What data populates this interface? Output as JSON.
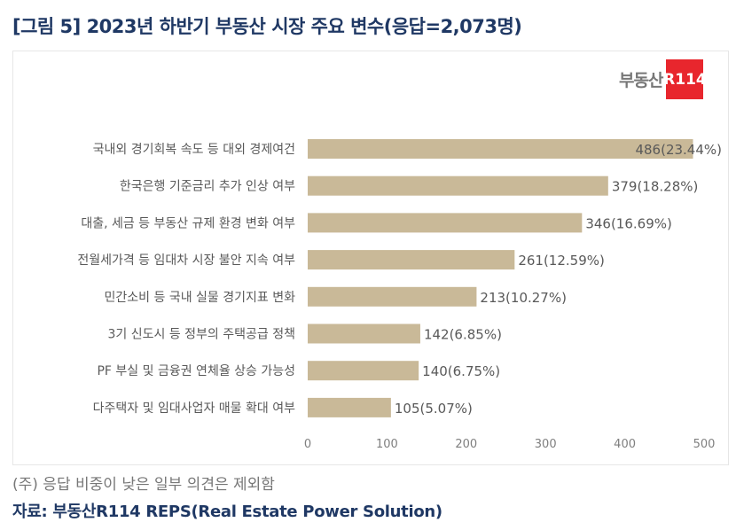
{
  "title": "[그림 5] 2023년 하반기 부동산 시장 주요 변수(응답=2,073명)",
  "logo": {
    "text": "부동산",
    "badge": "R114"
  },
  "note": "(주) 응답 비중이 낮은 일부 의견은 제외함",
  "source": "자료: 부동산R114 REPS(Real Estate Power Solution)",
  "colors": {
    "bar": "#c9b998",
    "title": "#1f3864",
    "logo": "#e8262d"
  },
  "chart_data": {
    "type": "bar",
    "orientation": "horizontal",
    "title": "2023년 하반기 부동산 시장 주요 변수",
    "categories": [
      "국내외 경기회복 속도 등 대외 경제여건",
      "한국은행 기준금리 추가 인상 여부",
      "대출, 세금 등 부동산 규제 환경 변화 여부",
      "전월세가격 등 임대차 시장 불안 지속 여부",
      "민간소비 등 국내 실물 경기지표 변화",
      "3기 신도시 등 정부의 주택공급 정책",
      "PF 부실 및 금융권 연체율 상승 가능성",
      "다주택자 및 임대사업자 매물 확대 여부"
    ],
    "values": [
      486,
      379,
      346,
      261,
      213,
      142,
      140,
      105
    ],
    "data_labels": [
      "486(23.44%)",
      "379(18.28%)",
      "346(16.69%)",
      "261(12.59%)",
      "213(10.27%)",
      "142(6.85%)",
      "140(6.75%)",
      "105(5.07%)"
    ],
    "xticks": [
      "0",
      "100",
      "200",
      "300",
      "400",
      "500"
    ],
    "xlim": [
      0,
      500
    ],
    "grid": false,
    "legend": "none"
  }
}
